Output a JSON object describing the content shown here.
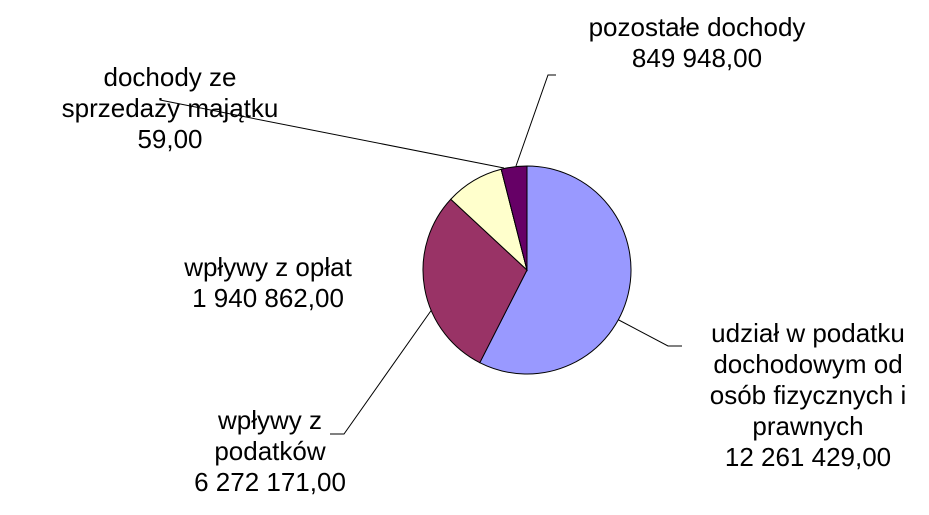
{
  "chart_data": {
    "type": "pie",
    "categories": [
      "udział w podatku dochodowym od osób fizycznych i prawnych",
      "wpływy z podatków",
      "wpływy z opłat",
      "dochody ze sprzedaży majątku",
      "pozostałe dochody"
    ],
    "values": [
      12261429,
      6272171,
      1940862,
      59,
      849948
    ],
    "value_labels": [
      "12 261 429,00",
      "6 272 171,00",
      "1 940 862,00",
      "59,00",
      "849 948,00"
    ],
    "colors": [
      "#9999ff",
      "#993366",
      "#ffffcc",
      "#ffffcc",
      "#660066"
    ]
  }
}
